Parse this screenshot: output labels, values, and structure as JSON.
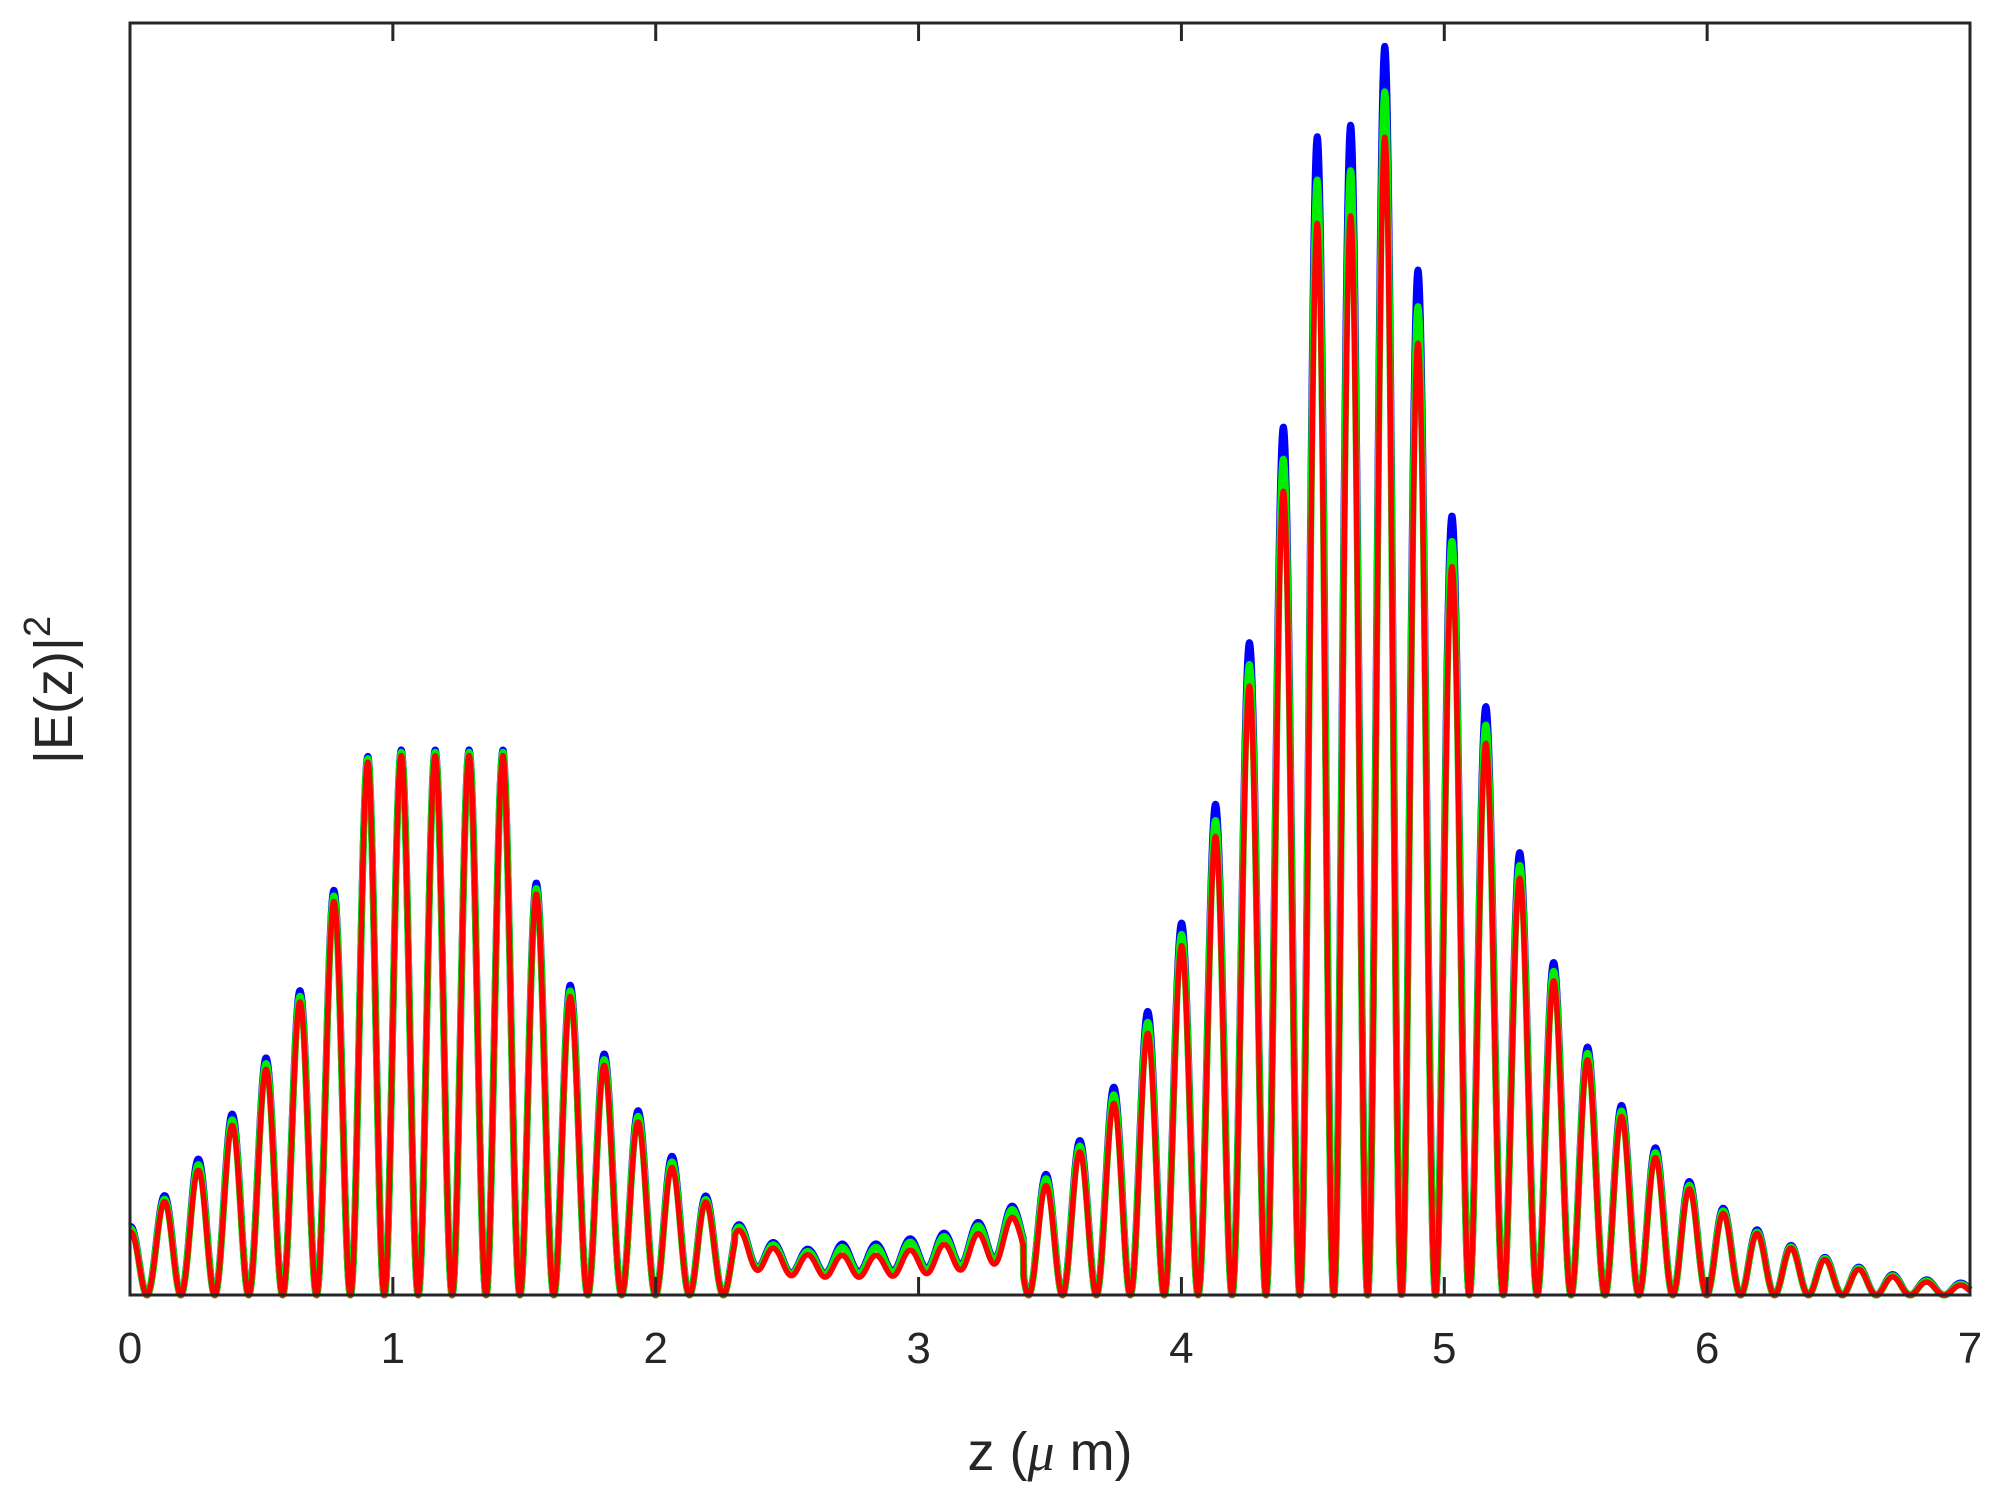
{
  "chart_data": {
    "type": "line",
    "xlabel": "z (μ m)",
    "ylabel": "|E(z)|²",
    "xlim": [
      0,
      7
    ],
    "ylim": [
      0,
      1.12
    ],
    "x_ticks": [
      "0",
      "1",
      "2",
      "3",
      "4",
      "5",
      "6",
      "7"
    ],
    "y_ticks_labeled": false,
    "grid": false,
    "legend": false,
    "fringe_period_um": 0.129,
    "envelope_series": {
      "x": [
        0,
        0.12,
        0.26,
        0.39,
        0.52,
        0.65,
        0.78,
        0.91,
        1.04,
        1.16,
        1.29,
        1.42,
        1.55,
        1.68,
        1.81,
        1.94,
        2.07,
        2.2,
        2.33,
        2.46,
        2.59,
        2.71,
        2.85,
        2.98,
        3.11,
        3.24,
        3.37,
        3.5,
        3.63,
        3.76,
        3.89,
        4.02,
        4.15,
        4.28,
        4.41,
        4.54,
        4.67,
        4.8,
        4.93,
        5.06,
        5.19,
        5.32,
        5.45,
        5.58,
        5.71,
        5.84,
        5.97,
        6.1,
        6.23,
        6.36,
        6.49,
        6.62,
        6.75,
        6.88,
        7.0
      ],
      "blue_peaks": [
        0.06,
        0.085,
        0.12,
        0.16,
        0.21,
        0.27,
        0.36,
        0.48,
        0.48,
        0.48,
        0.48,
        0.48,
        0.36,
        0.27,
        0.21,
        0.16,
        0.12,
        0.085,
        0.06,
        0.045,
        0.04,
        0.045,
        0.045,
        0.05,
        0.055,
        0.065,
        0.08,
        0.11,
        0.14,
        0.19,
        0.26,
        0.34,
        0.45,
        0.6,
        0.8,
        1.07,
        1.02,
        1.12,
        0.84,
        0.64,
        0.48,
        0.36,
        0.27,
        0.2,
        0.155,
        0.12,
        0.092,
        0.07,
        0.052,
        0.04,
        0.03,
        0.022,
        0.016,
        0.012,
        0.01
      ],
      "green_peaks": [
        0.058,
        0.082,
        0.115,
        0.155,
        0.205,
        0.265,
        0.355,
        0.478,
        0.478,
        0.478,
        0.478,
        0.478,
        0.355,
        0.265,
        0.205,
        0.155,
        0.115,
        0.082,
        0.058,
        0.043,
        0.038,
        0.042,
        0.042,
        0.047,
        0.052,
        0.062,
        0.077,
        0.106,
        0.135,
        0.183,
        0.25,
        0.33,
        0.435,
        0.58,
        0.77,
        1.03,
        0.98,
        1.08,
        0.81,
        0.62,
        0.465,
        0.35,
        0.263,
        0.195,
        0.15,
        0.116,
        0.089,
        0.068,
        0.05,
        0.039,
        0.029,
        0.021,
        0.015,
        0.011,
        0.009
      ],
      "red_peaks": [
        0.055,
        0.08,
        0.11,
        0.15,
        0.2,
        0.26,
        0.35,
        0.475,
        0.475,
        0.475,
        0.475,
        0.475,
        0.35,
        0.26,
        0.2,
        0.15,
        0.11,
        0.08,
        0.055,
        0.04,
        0.035,
        0.035,
        0.035,
        0.04,
        0.045,
        0.055,
        0.07,
        0.1,
        0.13,
        0.175,
        0.24,
        0.32,
        0.42,
        0.56,
        0.74,
        0.99,
        0.94,
        1.04,
        0.78,
        0.6,
        0.45,
        0.34,
        0.255,
        0.19,
        0.145,
        0.112,
        0.086,
        0.066,
        0.049,
        0.038,
        0.028,
        0.02,
        0.014,
        0.01,
        0.008
      ]
    },
    "series_colors": [
      "#0000ff",
      "#00ee00",
      "#ff0000"
    ]
  }
}
